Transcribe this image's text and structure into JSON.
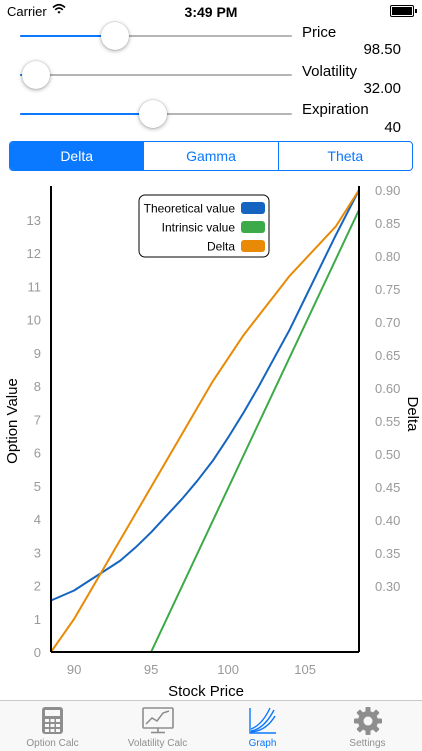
{
  "status_bar": {
    "carrier": "Carrier",
    "time": "3:49 PM"
  },
  "sliders": [
    {
      "label": "Price",
      "value": "98.50",
      "fraction": 0.35
    },
    {
      "label": "Volatility",
      "value": "32.00",
      "fraction": 0.06
    },
    {
      "label": "Expiration",
      "value": "40",
      "fraction": 0.49
    }
  ],
  "segments": [
    "Delta",
    "Gamma",
    "Theta"
  ],
  "selected_segment": "Delta",
  "chart_data": {
    "type": "line",
    "xlabel": "Stock Price",
    "ylabel": "Option Value",
    "y2label": "Delta",
    "xlim": [
      88.5,
      108.5
    ],
    "ylim": [
      0,
      13.9
    ],
    "y2lim": [
      0.2,
      0.9
    ],
    "xticks": [
      "90",
      "95",
      "100",
      "105"
    ],
    "yticks": [
      "0",
      "1",
      "2",
      "3",
      "4",
      "5",
      "6",
      "7",
      "8",
      "9",
      "10",
      "11",
      "12",
      "13"
    ],
    "y2ticks": [
      "0.30",
      "0.35",
      "0.40",
      "0.45",
      "0.50",
      "0.55",
      "0.60",
      "0.65",
      "0.70",
      "0.75",
      "0.80",
      "0.85",
      "0.90"
    ],
    "legend_position": "top-right",
    "series": [
      {
        "name": "Theoretical value",
        "color": "#1565c0",
        "axis": "left",
        "x": [
          88.5,
          90,
          91,
          92,
          93,
          94,
          95,
          96,
          97,
          98,
          99,
          100,
          101,
          102,
          103,
          104,
          105,
          106,
          107,
          108.5
        ],
        "y": [
          1.55,
          1.85,
          2.15,
          2.45,
          2.75,
          3.15,
          3.6,
          4.1,
          4.6,
          5.15,
          5.75,
          6.45,
          7.2,
          8.0,
          8.85,
          9.7,
          10.65,
          11.6,
          12.55,
          13.9
        ]
      },
      {
        "name": "Intrinsic value",
        "color": "#3caa48",
        "axis": "left",
        "x": [
          88.5,
          95,
          108.5
        ],
        "y": [
          0,
          0,
          13.3
        ]
      },
      {
        "name": "Delta",
        "color": "#e88a05",
        "axis": "right",
        "x": [
          88.5,
          90,
          91,
          92,
          93,
          94,
          95,
          96,
          97,
          98,
          99,
          100,
          101,
          102,
          103,
          104,
          105,
          106,
          107,
          108.5
        ],
        "y": [
          0.2,
          0.25,
          0.29,
          0.33,
          0.37,
          0.41,
          0.45,
          0.49,
          0.53,
          0.57,
          0.61,
          0.645,
          0.68,
          0.71,
          0.74,
          0.77,
          0.795,
          0.82,
          0.845,
          0.9
        ]
      }
    ]
  },
  "tabs": [
    {
      "label": "Option Calc",
      "icon": "calculator-icon"
    },
    {
      "label": "Volatility Calc",
      "icon": "monitor-chart-icon"
    },
    {
      "label": "Graph",
      "icon": "graph-icon",
      "active": true
    },
    {
      "label": "Settings",
      "icon": "gear-icon"
    }
  ],
  "colors": {
    "accent": "#0a78ff",
    "tab_inactive": "#8e8e8e"
  }
}
